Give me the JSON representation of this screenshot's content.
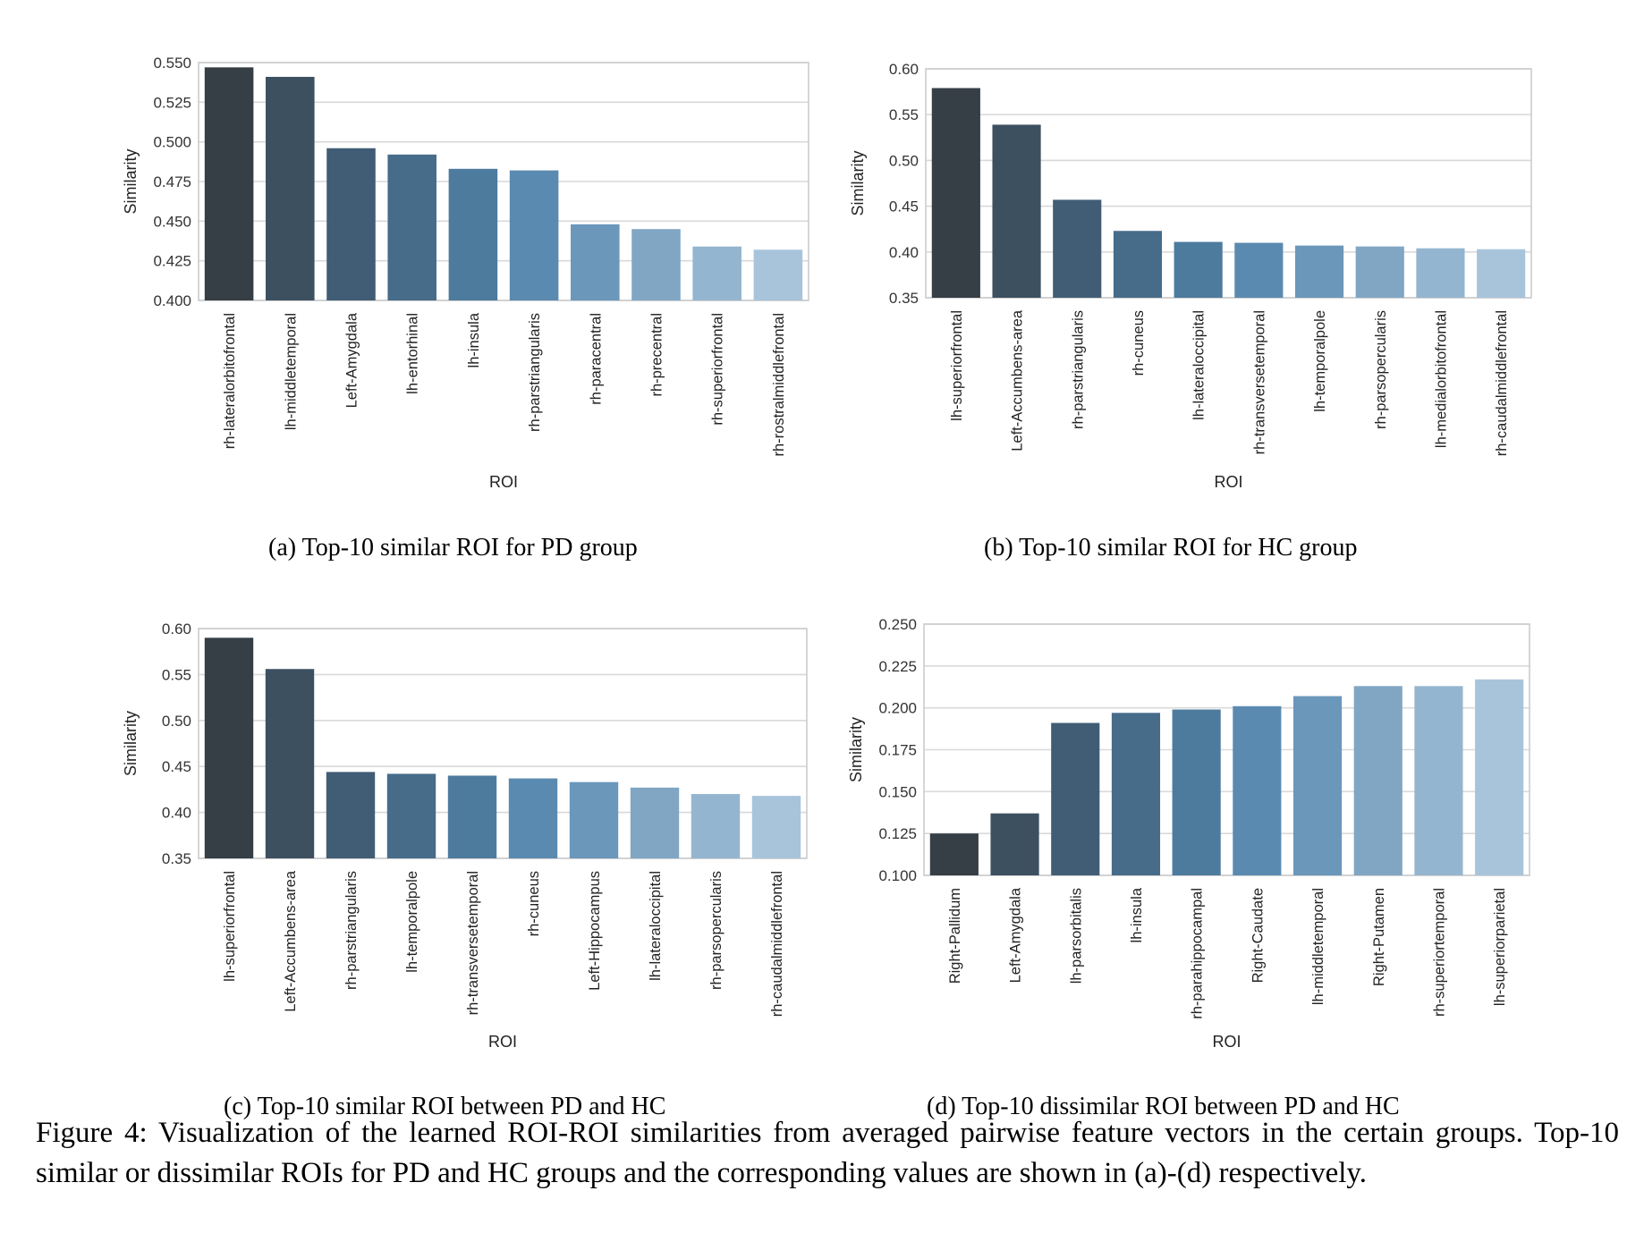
{
  "chart_data": [
    {
      "type": "bar",
      "caption": "(a)  Top-10 similar ROI for PD group",
      "xlabel": "ROI",
      "ylabel": "Similarity",
      "ylim": [
        0.4,
        0.55
      ],
      "yticks": [
        "0.400",
        "0.425",
        "0.450",
        "0.475",
        "0.500",
        "0.525",
        "0.550"
      ],
      "categories": [
        "rh-lateralorbitofrontal",
        "lh-middletemporal",
        "Left-Amygdala",
        "lh-entorhinal",
        "lh-insula",
        "rh-parstriangularis",
        "rh-paracentral",
        "rh-precentral",
        "rh-superiorfrontal",
        "rh-rostralmiddlefrontal"
      ],
      "values": [
        0.547,
        0.541,
        0.496,
        0.492,
        0.483,
        0.482,
        0.448,
        0.445,
        0.434,
        0.432
      ],
      "colors": [
        "#363e46",
        "#3d5060",
        "#415d75",
        "#466c8a",
        "#4d7b9e",
        "#5b8ab0",
        "#6b97bb",
        "#80a6c4",
        "#94b5cf",
        "#a8c4db"
      ],
      "grid": true
    },
    {
      "type": "bar",
      "caption": "(b)  Top-10 similar ROI for HC group",
      "xlabel": "ROI",
      "ylabel": "Similarity",
      "ylim": [
        0.35,
        0.6
      ],
      "yticks": [
        "0.35",
        "0.40",
        "0.45",
        "0.50",
        "0.55",
        "0.60"
      ],
      "categories": [
        "lh-superiorfrontal",
        "Left-Accumbens-area",
        "rh-parstriangularis",
        "rh-cuneus",
        "lh-lateraloccipital",
        "rh-transversetemporal",
        "lh-temporalpole",
        "rh-parsopercularis",
        "lh-medialorbitofrontal",
        "rh-caudalmiddlefrontal"
      ],
      "values": [
        0.579,
        0.539,
        0.457,
        0.423,
        0.411,
        0.41,
        0.407,
        0.406,
        0.404,
        0.403
      ],
      "colors": [
        "#363e46",
        "#3d5060",
        "#415d75",
        "#466c8a",
        "#4d7b9e",
        "#5b8ab0",
        "#6b97bb",
        "#80a6c4",
        "#94b5cf",
        "#a8c4db"
      ],
      "grid": true
    },
    {
      "type": "bar",
      "caption": "(c)  Top-10 similar ROI between PD and HC",
      "xlabel": "ROI",
      "ylabel": "Similarity",
      "ylim": [
        0.35,
        0.6
      ],
      "yticks": [
        "0.35",
        "0.40",
        "0.45",
        "0.50",
        "0.55",
        "0.60"
      ],
      "categories": [
        "lh-superiorfrontal",
        "Left-Accumbens-area",
        "rh-parstriangularis",
        "lh-temporalpole",
        "rh-transversetemporal",
        "rh-cuneus",
        "Left-Hippocampus",
        "lh-lateraloccipital",
        "rh-parsopercularis",
        "rh-caudalmiddlefrontal"
      ],
      "values": [
        0.59,
        0.556,
        0.444,
        0.442,
        0.44,
        0.437,
        0.433,
        0.427,
        0.42,
        0.418
      ],
      "colors": [
        "#363e46",
        "#3d5060",
        "#415d75",
        "#466c8a",
        "#4d7b9e",
        "#5b8ab0",
        "#6b97bb",
        "#80a6c4",
        "#94b5cf",
        "#a8c4db"
      ],
      "grid": true
    },
    {
      "type": "bar",
      "caption": "(d)  Top-10 dissimilar ROI between PD and HC",
      "xlabel": "ROI",
      "ylabel": "Similarity",
      "ylim": [
        0.1,
        0.25
      ],
      "yticks": [
        "0.100",
        "0.125",
        "0.150",
        "0.175",
        "0.200",
        "0.225",
        "0.250"
      ],
      "categories": [
        "Right-Pallidum",
        "Left-Amygdala",
        "lh-parsorbitalis",
        "lh-insula",
        "rh-parahippocampal",
        "Right-Caudate",
        "lh-middletemporal",
        "Right-Putamen",
        "rh-superiortemporal",
        "lh-superiorparietal"
      ],
      "values": [
        0.125,
        0.137,
        0.191,
        0.197,
        0.199,
        0.201,
        0.207,
        0.213,
        0.213,
        0.217
      ],
      "colors": [
        "#363e46",
        "#3d5060",
        "#415d75",
        "#466c8a",
        "#4d7b9e",
        "#5b8ab0",
        "#6b97bb",
        "#80a6c4",
        "#94b5cf",
        "#a8c4db"
      ],
      "grid": true
    }
  ],
  "figure_caption": "Figure 4:  Visualization of the learned ROI-ROI similarities from averaged pairwise feature vectors in the certain groups. Top-10 similar or dissimilar ROIs for PD and HC groups and the corresponding values are shown in (a)-(d) respectively."
}
